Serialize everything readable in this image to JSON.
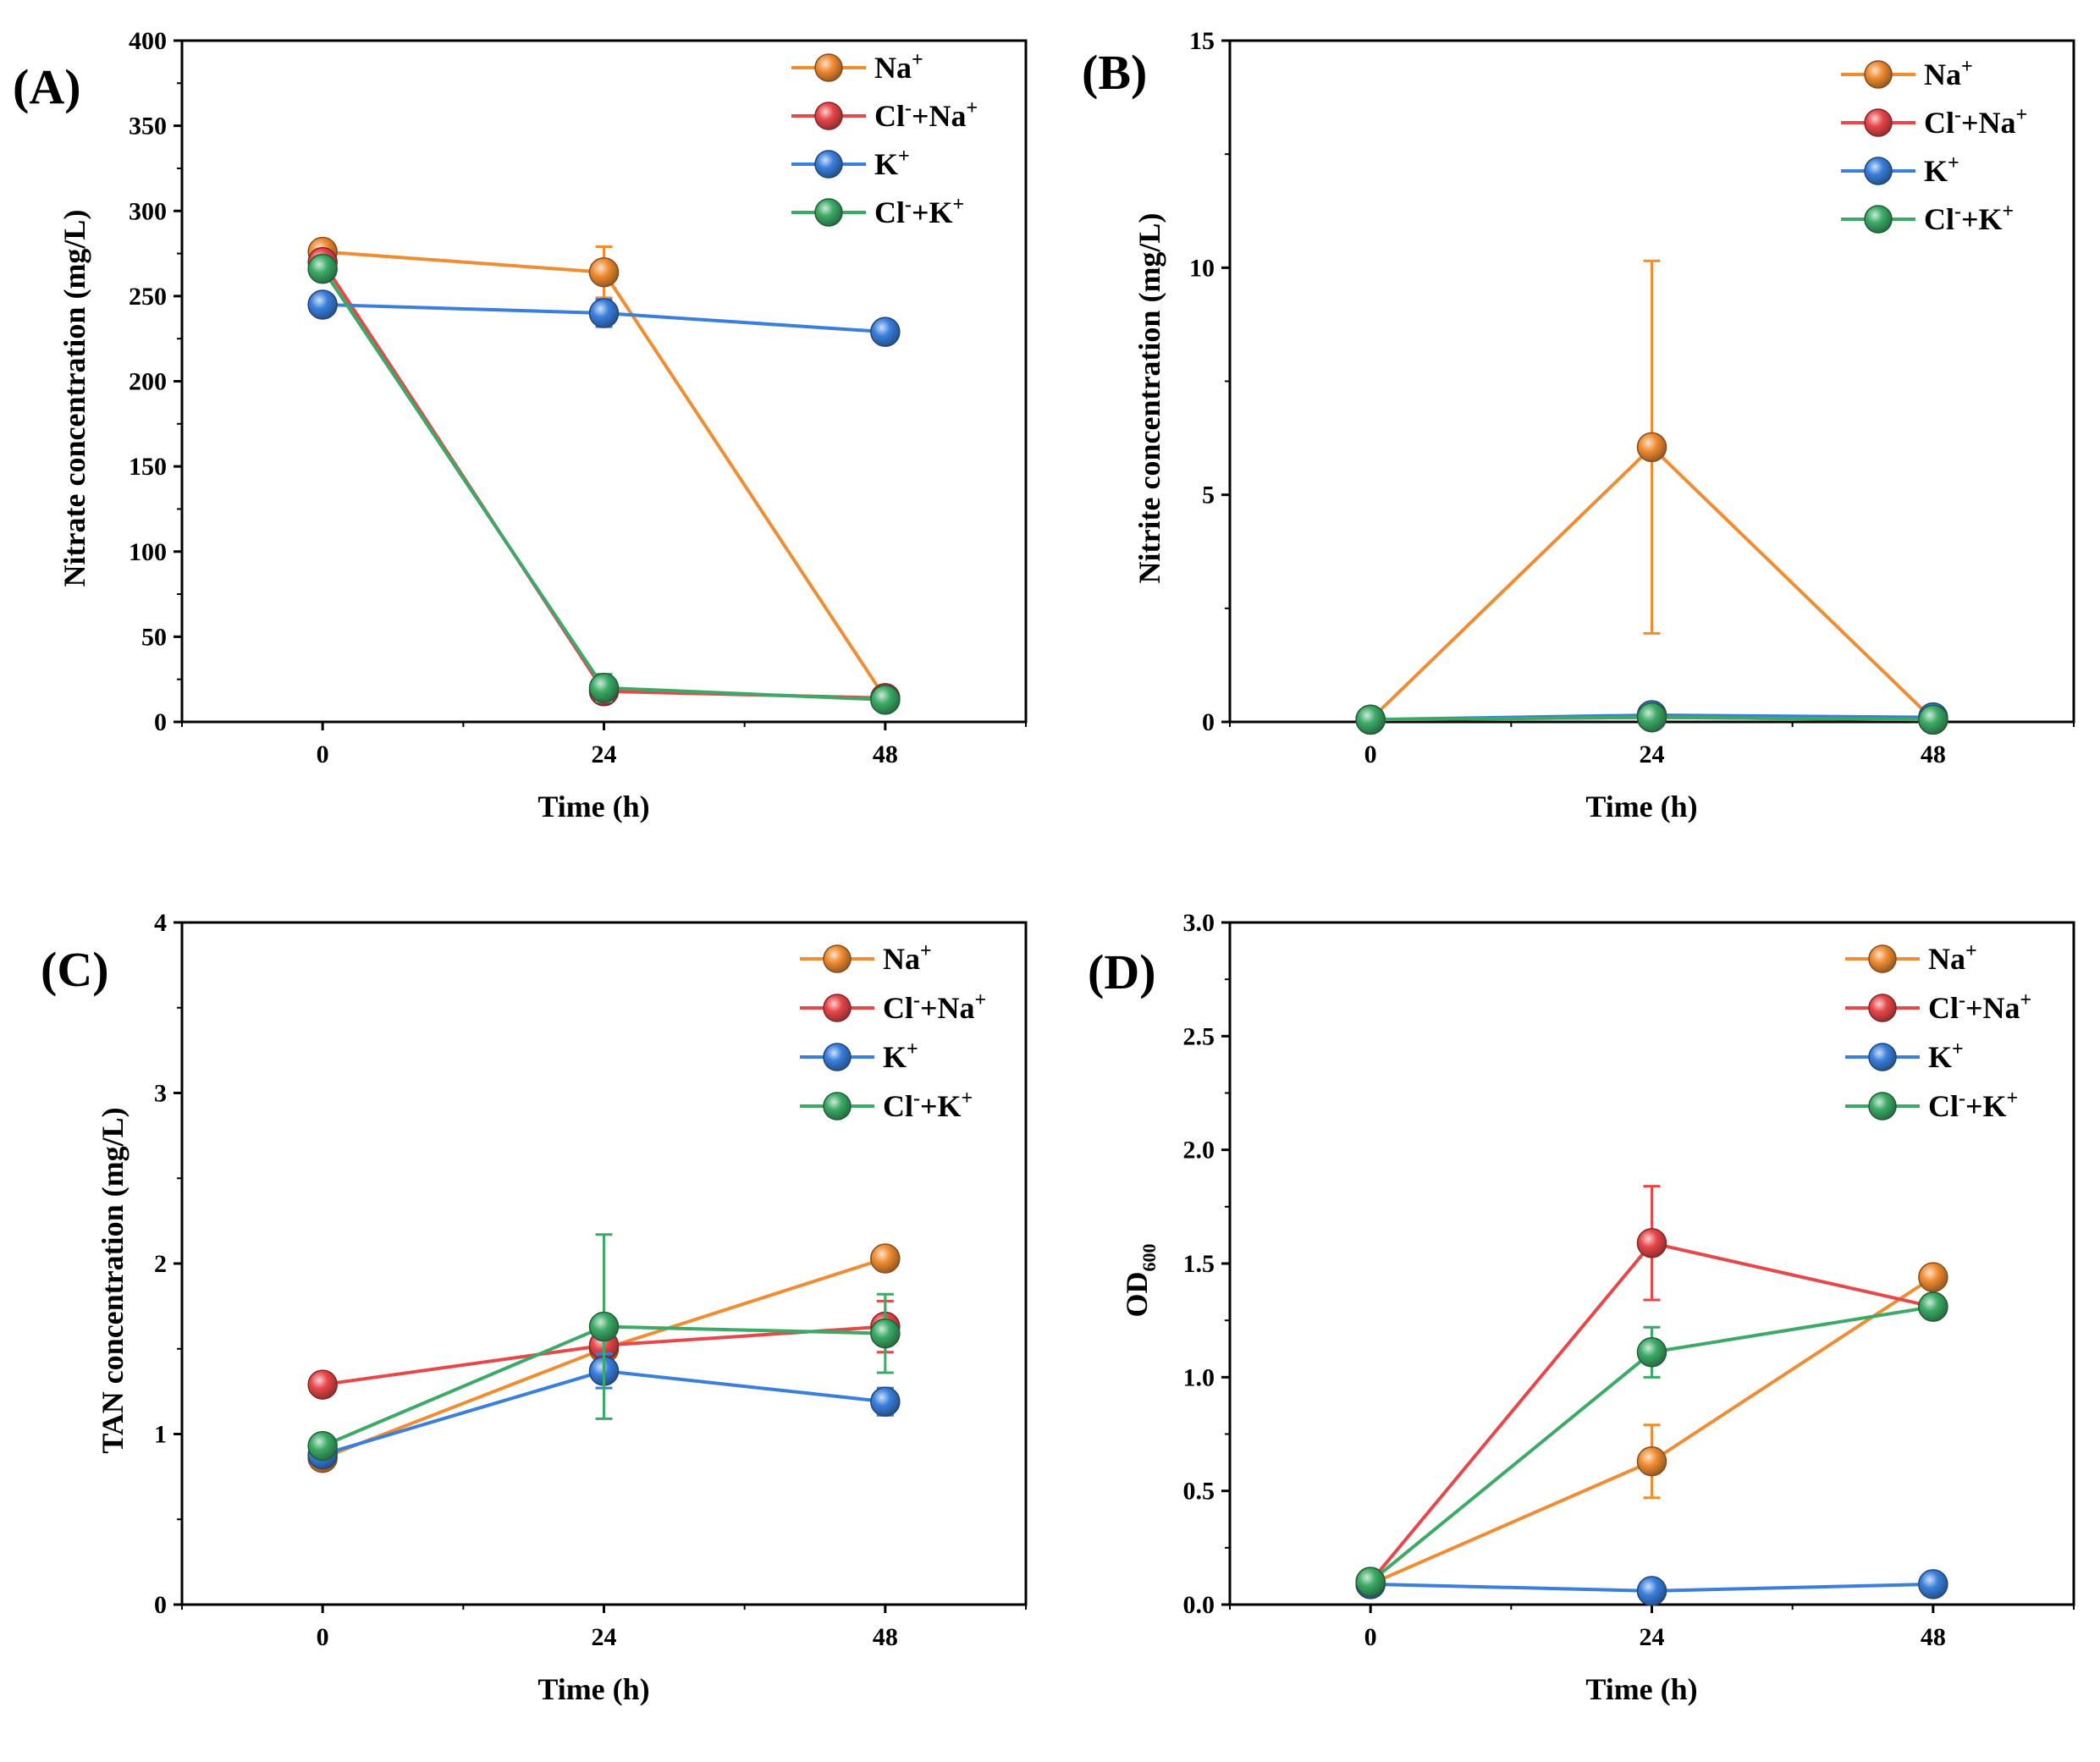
{
  "chart_data": [
    {
      "type": "line",
      "panel_label": "(A)",
      "xlabel": "Time (h)",
      "ylabel": "Nitrate concentration (mg/L)",
      "ylabel_sub": "",
      "categories": [
        0,
        24,
        48
      ],
      "x_tick_labels": [
        "0",
        "24",
        "48"
      ],
      "xlim": [
        -12,
        60
      ],
      "ylim": [
        0,
        400
      ],
      "y_ticks": [
        0,
        50,
        100,
        150,
        200,
        250,
        300,
        350,
        400
      ],
      "y_tick_labels": [
        "0",
        "50",
        "100",
        "150",
        "200",
        "250",
        "300",
        "350",
        "400"
      ],
      "legend": "top-right",
      "series": [
        {
          "key": "na",
          "name": "Na",
          "name_sup": "+",
          "color": "#f08c32",
          "values": [
            276,
            264,
            14
          ],
          "errors": [
            3,
            15,
            4
          ]
        },
        {
          "key": "clna",
          "name": "Cl",
          "name_sup": "-",
          "name2": "+Na",
          "name2_sup": "+",
          "color": "#e8474a",
          "values": [
            270,
            18,
            14
          ],
          "errors": [
            3,
            5,
            3
          ]
        },
        {
          "key": "k",
          "name": "K",
          "name_sup": "+",
          "color": "#3a7fdc",
          "values": [
            245,
            240,
            229
          ],
          "errors": [
            3,
            8,
            6
          ]
        },
        {
          "key": "clk",
          "name": "Cl",
          "name_sup": "-",
          "name2": "+K",
          "name2_sup": "+",
          "color": "#3caa66",
          "values": [
            266,
            20,
            13
          ],
          "errors": [
            3,
            8,
            5
          ]
        }
      ]
    },
    {
      "type": "line",
      "panel_label": "(B)",
      "xlabel": "Time (h)",
      "ylabel": "Nitrite concentration (mg/L)",
      "ylabel_sub": "",
      "categories": [
        0,
        24,
        48
      ],
      "x_tick_labels": [
        "0",
        "24",
        "48"
      ],
      "xlim": [
        -12,
        60
      ],
      "ylim": [
        0,
        15
      ],
      "y_ticks": [
        0,
        5,
        10,
        15
      ],
      "y_tick_labels": [
        "0",
        "5",
        "10",
        "15"
      ],
      "legend": "top-right",
      "series": [
        {
          "key": "na",
          "name": "Na",
          "name_sup": "+",
          "color": "#f08c32",
          "values": [
            0.05,
            6.05,
            0.05
          ],
          "errors": [
            0,
            4.1,
            0
          ]
        },
        {
          "key": "clna",
          "name": "Cl",
          "name_sup": "-",
          "name2": "+Na",
          "name2_sup": "+",
          "color": "#e8474a",
          "values": [
            0.05,
            0.1,
            0.05
          ],
          "errors": [
            0,
            0,
            0
          ]
        },
        {
          "key": "k",
          "name": "K",
          "name_sup": "+",
          "color": "#3a7fdc",
          "values": [
            0.05,
            0.15,
            0.1
          ],
          "errors": [
            0,
            0.05,
            0
          ]
        },
        {
          "key": "clk",
          "name": "Cl",
          "name_sup": "-",
          "name2": "+K",
          "name2_sup": "+",
          "color": "#3caa66",
          "values": [
            0.05,
            0.1,
            0.05
          ],
          "errors": [
            0,
            0,
            0
          ]
        }
      ]
    },
    {
      "type": "line",
      "panel_label": "(C)",
      "xlabel": "Time (h)",
      "ylabel": "TAN concentration (mg/L)",
      "ylabel_sub": "",
      "categories": [
        0,
        24,
        48
      ],
      "x_tick_labels": [
        "0",
        "24",
        "48"
      ],
      "xlim": [
        -12,
        60
      ],
      "ylim": [
        0,
        4
      ],
      "y_ticks": [
        0,
        1,
        2,
        3,
        4
      ],
      "y_tick_labels": [
        "0",
        "1",
        "2",
        "3",
        "4"
      ],
      "legend": "top-right",
      "series": [
        {
          "key": "na",
          "name": "Na",
          "name_sup": "+",
          "color": "#f08c32",
          "values": [
            0.86,
            1.5,
            2.03
          ],
          "errors": [
            0.02,
            0.05,
            0.05
          ]
        },
        {
          "key": "clna",
          "name": "Cl",
          "name_sup": "-",
          "name2": "+Na",
          "name2_sup": "+",
          "color": "#e8474a",
          "values": [
            1.29,
            1.52,
            1.63
          ],
          "errors": [
            0.02,
            0.05,
            0.15
          ]
        },
        {
          "key": "k",
          "name": "K",
          "name_sup": "+",
          "color": "#3a7fdc",
          "values": [
            0.88,
            1.37,
            1.19
          ],
          "errors": [
            0.03,
            0.1,
            0.08
          ]
        },
        {
          "key": "clk",
          "name": "Cl",
          "name_sup": "-",
          "name2": "+K",
          "name2_sup": "+",
          "color": "#3caa66",
          "values": [
            0.93,
            1.63,
            1.59
          ],
          "errors": [
            0.03,
            0.54,
            0.23
          ]
        }
      ]
    },
    {
      "type": "line",
      "panel_label": "(D)",
      "xlabel": "Time (h)",
      "ylabel": "OD",
      "ylabel_sub": "600",
      "categories": [
        0,
        24,
        48
      ],
      "x_tick_labels": [
        "0",
        "24",
        "48"
      ],
      "xlim": [
        -12,
        60
      ],
      "ylim": [
        0,
        3
      ],
      "y_ticks": [
        0,
        0.5,
        1.0,
        1.5,
        2.0,
        2.5,
        3.0
      ],
      "y_tick_labels": [
        "0.0",
        "0.5",
        "1.0",
        "1.5",
        "2.0",
        "2.5",
        "3.0"
      ],
      "legend": "top-right",
      "series": [
        {
          "key": "na",
          "name": "Na",
          "name_sup": "+",
          "color": "#f08c32",
          "values": [
            0.09,
            0.63,
            1.44
          ],
          "errors": [
            0.01,
            0.16,
            0.03
          ]
        },
        {
          "key": "clna",
          "name": "Cl",
          "name_sup": "-",
          "name2": "+Na",
          "name2_sup": "+",
          "color": "#e8474a",
          "values": [
            0.1,
            1.59,
            1.31
          ],
          "errors": [
            0.01,
            0.25,
            0.03
          ]
        },
        {
          "key": "k",
          "name": "K",
          "name_sup": "+",
          "color": "#3a7fdc",
          "values": [
            0.09,
            0.06,
            0.09
          ],
          "errors": [
            0.01,
            0.01,
            0.01
          ]
        },
        {
          "key": "clk",
          "name": "Cl",
          "name_sup": "-",
          "name2": "+K",
          "name2_sup": "+",
          "color": "#3caa66",
          "values": [
            0.1,
            1.11,
            1.31
          ],
          "errors": [
            0.01,
            0.11,
            0.03
          ]
        }
      ]
    }
  ]
}
